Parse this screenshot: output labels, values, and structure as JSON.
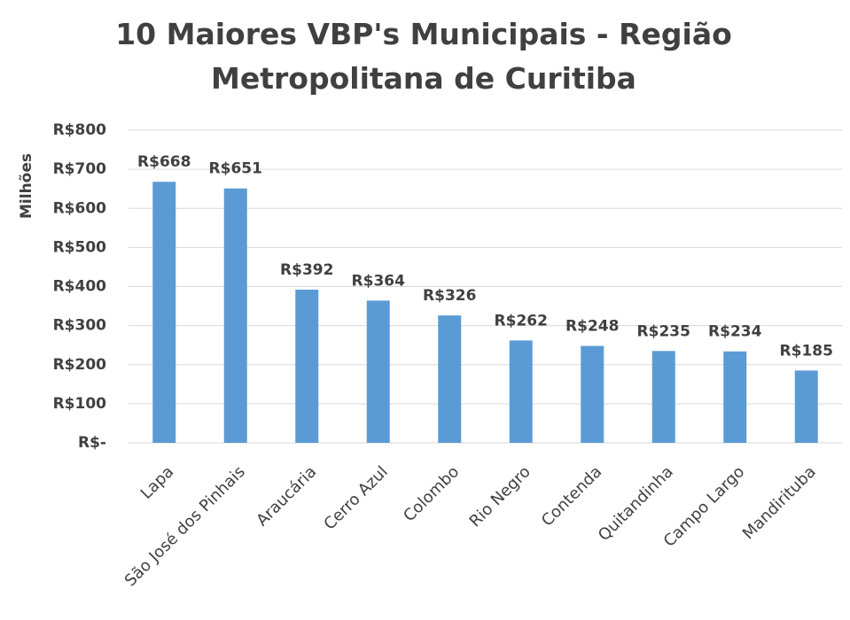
{
  "chart_data": {
    "type": "bar",
    "title": "10 Maiores VBP's Municipais - Região Metropolitana de Curitiba",
    "y_label": "Milhões",
    "categories": [
      "Lapa",
      "São José dos Pinhais",
      "Araucária",
      "Cerro Azul",
      "Colombo",
      "Rio Negro",
      "Contenda",
      "Quitandinha",
      "Campo Largo",
      "Mandirituba"
    ],
    "values": [
      668,
      651,
      392,
      364,
      326,
      262,
      248,
      235,
      234,
      185
    ],
    "value_labels": [
      "R$668",
      "R$651",
      "R$392",
      "R$364",
      "R$326",
      "R$262",
      "R$248",
      "R$235",
      "R$234",
      "R$185"
    ],
    "color": "#5b9bd5",
    "ylim": [
      0,
      800
    ],
    "yticks": [
      {
        "value": 0,
        "label": "R$-"
      },
      {
        "value": 100,
        "label": "R$100"
      },
      {
        "value": 200,
        "label": "R$200"
      },
      {
        "value": 300,
        "label": "R$300"
      },
      {
        "value": 400,
        "label": "R$400"
      },
      {
        "value": 500,
        "label": "R$500"
      },
      {
        "value": 600,
        "label": "R$600"
      },
      {
        "value": 700,
        "label": "R$700"
      },
      {
        "value": 800,
        "label": "R$800"
      }
    ],
    "grid": true
  }
}
